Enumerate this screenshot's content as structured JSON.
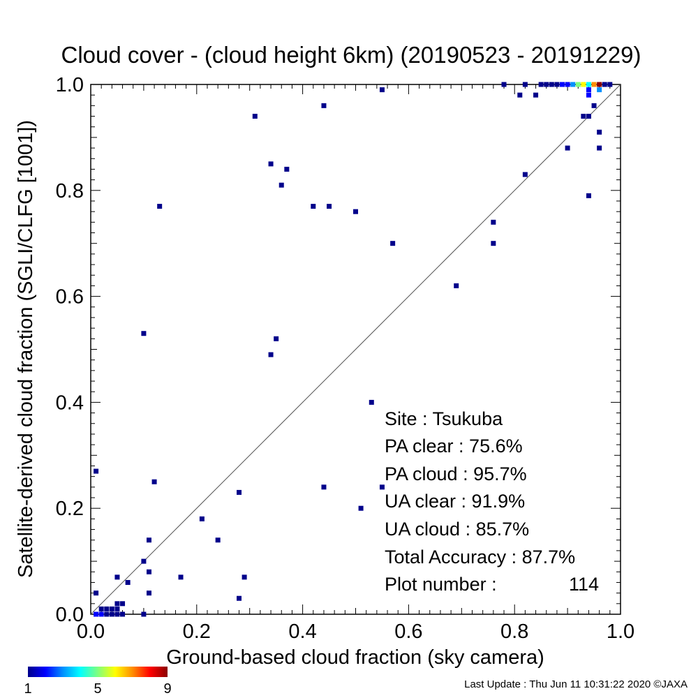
{
  "chart_data": {
    "type": "scatter",
    "title": "Cloud cover - (cloud height 6km)  (20190523 - 20191229)",
    "xlabel": "Ground-based cloud fraction (sky camera)",
    "ylabel": "Satellite-derived cloud fraction (SGLI/CLFG [1001])",
    "xlim": [
      0.0,
      1.0
    ],
    "ylim": [
      0.0,
      1.0
    ],
    "xticks": [
      "0.0",
      "0.2",
      "0.4",
      "0.6",
      "0.8",
      "1.0"
    ],
    "yticks": [
      "0.0",
      "0.2",
      "0.4",
      "0.6",
      "0.8",
      "1.0"
    ],
    "reference_line": "1:1 diagonal",
    "grid": false,
    "colorbar": {
      "min": 1,
      "max": 9,
      "tick_labels": [
        "1",
        "5",
        "9"
      ],
      "colors": [
        "#00008b",
        "#0000ff",
        "#0090ff",
        "#00ffff",
        "#7fff7f",
        "#ffff00",
        "#ff8c00",
        "#ff0000",
        "#8b0000"
      ]
    },
    "points": [
      {
        "x": 0.01,
        "y": 0.0,
        "count": 2
      },
      {
        "x": 0.02,
        "y": 0.0,
        "count": 2
      },
      {
        "x": 0.03,
        "y": 0.0,
        "count": 1
      },
      {
        "x": 0.04,
        "y": 0.0,
        "count": 1
      },
      {
        "x": 0.05,
        "y": 0.0,
        "count": 1
      },
      {
        "x": 0.06,
        "y": 0.0,
        "count": 1
      },
      {
        "x": 0.02,
        "y": 0.01,
        "count": 1
      },
      {
        "x": 0.03,
        "y": 0.01,
        "count": 1
      },
      {
        "x": 0.04,
        "y": 0.01,
        "count": 1
      },
      {
        "x": 0.05,
        "y": 0.01,
        "count": 1
      },
      {
        "x": 0.05,
        "y": 0.02,
        "count": 1
      },
      {
        "x": 0.06,
        "y": 0.02,
        "count": 1
      },
      {
        "x": 0.1,
        "y": 0.0,
        "count": 1
      },
      {
        "x": 0.01,
        "y": 0.04,
        "count": 1
      },
      {
        "x": 0.05,
        "y": 0.07,
        "count": 1
      },
      {
        "x": 0.07,
        "y": 0.06,
        "count": 1
      },
      {
        "x": 0.1,
        "y": 0.1,
        "count": 1
      },
      {
        "x": 0.11,
        "y": 0.08,
        "count": 1
      },
      {
        "x": 0.11,
        "y": 0.04,
        "count": 1
      },
      {
        "x": 0.11,
        "y": 0.14,
        "count": 1
      },
      {
        "x": 0.01,
        "y": 0.27,
        "count": 1
      },
      {
        "x": 0.12,
        "y": 0.25,
        "count": 1
      },
      {
        "x": 0.17,
        "y": 0.07,
        "count": 1
      },
      {
        "x": 0.21,
        "y": 0.18,
        "count": 1
      },
      {
        "x": 0.24,
        "y": 0.14,
        "count": 1
      },
      {
        "x": 0.28,
        "y": 0.03,
        "count": 1
      },
      {
        "x": 0.29,
        "y": 0.07,
        "count": 1
      },
      {
        "x": 0.28,
        "y": 0.23,
        "count": 1
      },
      {
        "x": 0.44,
        "y": 0.24,
        "count": 1
      },
      {
        "x": 0.51,
        "y": 0.2,
        "count": 1
      },
      {
        "x": 0.55,
        "y": 0.24,
        "count": 1
      },
      {
        "x": 0.53,
        "y": 0.4,
        "count": 1
      },
      {
        "x": 0.1,
        "y": 0.53,
        "count": 1
      },
      {
        "x": 0.34,
        "y": 0.49,
        "count": 1
      },
      {
        "x": 0.35,
        "y": 0.52,
        "count": 1
      },
      {
        "x": 0.13,
        "y": 0.77,
        "count": 1
      },
      {
        "x": 0.31,
        "y": 0.94,
        "count": 1
      },
      {
        "x": 0.34,
        "y": 0.85,
        "count": 1
      },
      {
        "x": 0.37,
        "y": 0.84,
        "count": 1
      },
      {
        "x": 0.36,
        "y": 0.81,
        "count": 1
      },
      {
        "x": 0.42,
        "y": 0.77,
        "count": 1
      },
      {
        "x": 0.45,
        "y": 0.77,
        "count": 1
      },
      {
        "x": 0.5,
        "y": 0.76,
        "count": 1
      },
      {
        "x": 0.57,
        "y": 0.7,
        "count": 1
      },
      {
        "x": 0.44,
        "y": 0.96,
        "count": 1
      },
      {
        "x": 0.55,
        "y": 0.99,
        "count": 1
      },
      {
        "x": 0.69,
        "y": 0.62,
        "count": 1
      },
      {
        "x": 0.76,
        "y": 0.74,
        "count": 1
      },
      {
        "x": 0.76,
        "y": 0.7,
        "count": 1
      },
      {
        "x": 0.82,
        "y": 0.83,
        "count": 1
      },
      {
        "x": 0.9,
        "y": 0.88,
        "count": 1
      },
      {
        "x": 0.94,
        "y": 0.79,
        "count": 1
      },
      {
        "x": 0.96,
        "y": 0.88,
        "count": 1
      },
      {
        "x": 0.96,
        "y": 0.91,
        "count": 1
      },
      {
        "x": 0.93,
        "y": 0.94,
        "count": 1
      },
      {
        "x": 0.94,
        "y": 0.94,
        "count": 1
      },
      {
        "x": 0.95,
        "y": 0.96,
        "count": 1
      },
      {
        "x": 0.81,
        "y": 0.98,
        "count": 1
      },
      {
        "x": 0.84,
        "y": 0.98,
        "count": 1
      },
      {
        "x": 0.94,
        "y": 0.98,
        "count": 2
      },
      {
        "x": 0.94,
        "y": 0.99,
        "count": 2
      },
      {
        "x": 0.96,
        "y": 0.99,
        "count": 3
      },
      {
        "x": 0.78,
        "y": 1.0,
        "count": 1
      },
      {
        "x": 0.82,
        "y": 1.0,
        "count": 1
      },
      {
        "x": 0.85,
        "y": 1.0,
        "count": 1
      },
      {
        "x": 0.86,
        "y": 1.0,
        "count": 1
      },
      {
        "x": 0.87,
        "y": 1.0,
        "count": 1
      },
      {
        "x": 0.88,
        "y": 1.0,
        "count": 1
      },
      {
        "x": 0.89,
        "y": 1.0,
        "count": 2
      },
      {
        "x": 0.9,
        "y": 1.0,
        "count": 2
      },
      {
        "x": 0.91,
        "y": 1.0,
        "count": 3
      },
      {
        "x": 0.92,
        "y": 1.0,
        "count": 5
      },
      {
        "x": 0.93,
        "y": 1.0,
        "count": 6
      },
      {
        "x": 0.94,
        "y": 1.0,
        "count": 4
      },
      {
        "x": 0.95,
        "y": 1.0,
        "count": 7
      },
      {
        "x": 0.96,
        "y": 1.0,
        "count": 9
      },
      {
        "x": 0.97,
        "y": 1.0,
        "count": 1
      },
      {
        "x": 0.98,
        "y": 1.0,
        "count": 1
      }
    ]
  },
  "stats": {
    "site": "Site : Tsukuba",
    "pa_clear": "PA clear :  75.6%",
    "pa_cloud": "PA cloud :  95.7%",
    "ua_clear": "UA clear :  91.9%",
    "ua_cloud": "UA cloud :  85.7%",
    "total_accuracy": "Total Accuracy :  87.7%",
    "plot_number_label": "Plot number :",
    "plot_number_value": "114"
  },
  "footer": "Last Update : Thu Jun 11 10:31:22 2020  ©JAXA"
}
